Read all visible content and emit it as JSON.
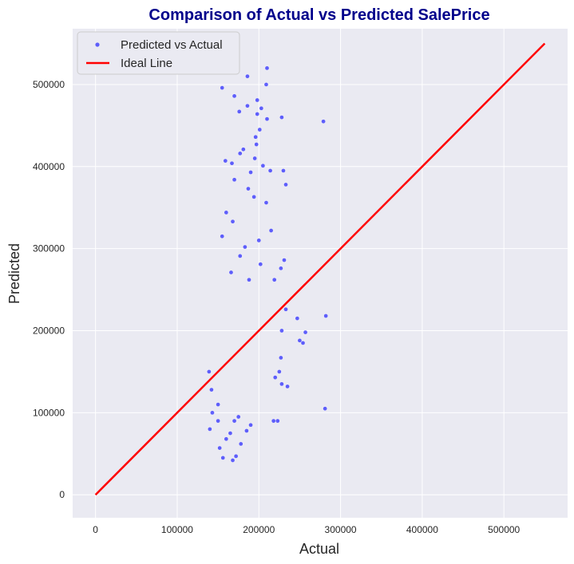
{
  "chart_data": {
    "type": "scatter",
    "title": "Comparison of Actual vs Predicted SalePrice",
    "xlabel": "Actual",
    "ylabel": "Predicted",
    "xlim": [
      -28000,
      578000
    ],
    "ylim": [
      -28000,
      568000
    ],
    "x_ticks": [
      0,
      100000,
      200000,
      300000,
      400000,
      500000
    ],
    "y_ticks": [
      0,
      100000,
      200000,
      300000,
      400000,
      500000
    ],
    "grid": true,
    "legend_position": "top-left",
    "colors": {
      "background": "#eaeaf2",
      "grid": "#ffffff",
      "points": "#0000ff",
      "ideal_line": "#ff0000",
      "title": "#00008b"
    },
    "series": [
      {
        "name": "Predicted vs Actual",
        "kind": "scatter",
        "points": [
          [
            155000,
            496000
          ],
          [
            210000,
            520000
          ],
          [
            186000,
            510000
          ],
          [
            170000,
            486000
          ],
          [
            209000,
            500000
          ],
          [
            198000,
            481000
          ],
          [
            186000,
            474000
          ],
          [
            203000,
            471000
          ],
          [
            176000,
            467000
          ],
          [
            279000,
            455000
          ],
          [
            228000,
            460000
          ],
          [
            210000,
            458000
          ],
          [
            198000,
            464000
          ],
          [
            201000,
            445000
          ],
          [
            196000,
            436000
          ],
          [
            197000,
            427000
          ],
          [
            181000,
            421000
          ],
          [
            177000,
            416000
          ],
          [
            195000,
            410000
          ],
          [
            205000,
            401000
          ],
          [
            159000,
            407000
          ],
          [
            167000,
            404000
          ],
          [
            214000,
            395000
          ],
          [
            230000,
            395000
          ],
          [
            190000,
            393000
          ],
          [
            170000,
            384000
          ],
          [
            233000,
            378000
          ],
          [
            187000,
            373000
          ],
          [
            194000,
            363000
          ],
          [
            209000,
            356000
          ],
          [
            160000,
            344000
          ],
          [
            168000,
            333000
          ],
          [
            215000,
            322000
          ],
          [
            155000,
            315000
          ],
          [
            231000,
            286000
          ],
          [
            200000,
            310000
          ],
          [
            183000,
            302000
          ],
          [
            177000,
            291000
          ],
          [
            202000,
            281000
          ],
          [
            166000,
            271000
          ],
          [
            188000,
            262000
          ],
          [
            227000,
            276000
          ],
          [
            219000,
            262000
          ],
          [
            233000,
            226000
          ],
          [
            247000,
            215000
          ],
          [
            228000,
            200000
          ],
          [
            257000,
            198000
          ],
          [
            250000,
            188000
          ],
          [
            254000,
            185000
          ],
          [
            282000,
            218000
          ],
          [
            281000,
            105000
          ],
          [
            235000,
            132000
          ],
          [
            218000,
            90000
          ],
          [
            223000,
            90000
          ],
          [
            227000,
            167000
          ],
          [
            225000,
            150000
          ],
          [
            220000,
            143000
          ],
          [
            228000,
            135000
          ],
          [
            139000,
            150000
          ],
          [
            142000,
            128000
          ],
          [
            140000,
            80000
          ],
          [
            143000,
            100000
          ],
          [
            150000,
            90000
          ],
          [
            152000,
            57000
          ],
          [
            156000,
            45000
          ],
          [
            168000,
            42000
          ],
          [
            172000,
            47000
          ],
          [
            160000,
            68000
          ],
          [
            165000,
            75000
          ],
          [
            178000,
            62000
          ],
          [
            185000,
            78000
          ],
          [
            190000,
            85000
          ],
          [
            170000,
            90000
          ],
          [
            175000,
            95000
          ],
          [
            150000,
            110000
          ]
        ]
      },
      {
        "name": "Ideal Line",
        "kind": "line",
        "points": [
          [
            0,
            0
          ],
          [
            550000,
            550000
          ]
        ]
      }
    ]
  }
}
